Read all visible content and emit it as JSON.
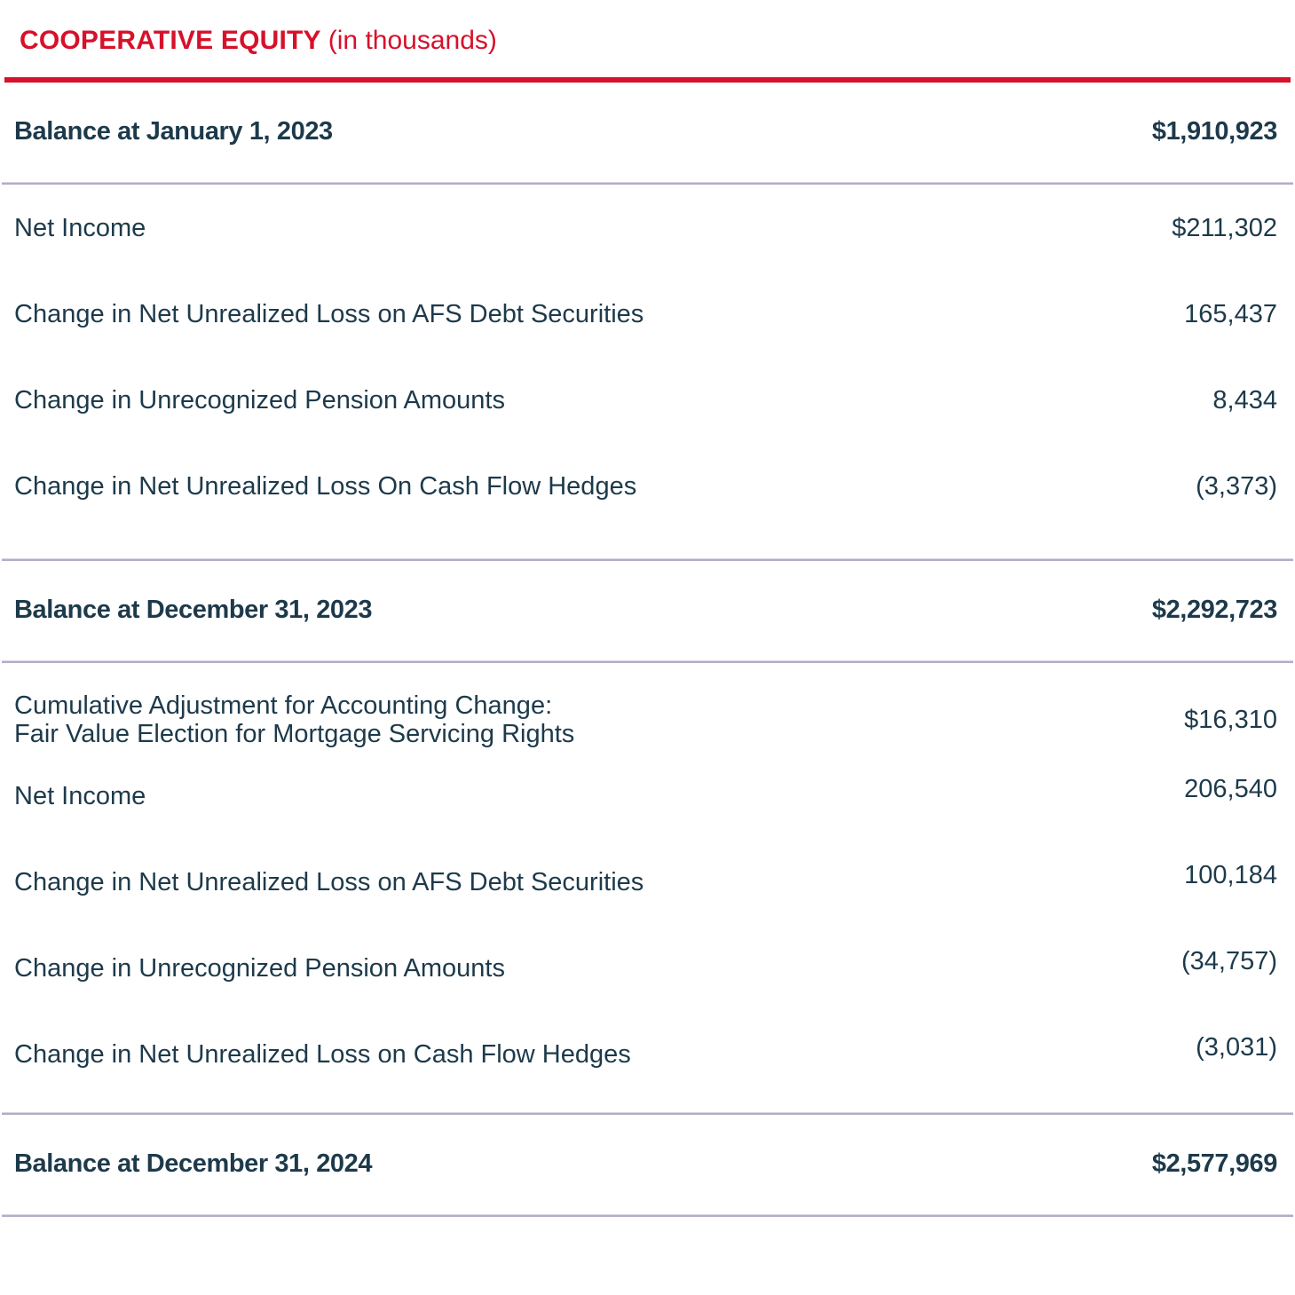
{
  "header": {
    "title": "COOPERATIVE EQUITY",
    "subtitle": "(in thousands)"
  },
  "colors": {
    "accent_red": "#D6112B",
    "text_navy": "#1D3A4B",
    "divider_purple": "#B5ABC6"
  },
  "table": {
    "rows": [
      {
        "label": "Balance at January 1, 2023",
        "value": "$1,910,923",
        "style": "bold"
      },
      {
        "label": "Net Income",
        "value": "$211,302"
      },
      {
        "label": "Change in Net Unrealized Loss on AFS Debt Securities",
        "value": "165,437"
      },
      {
        "label": "Change in Unrecognized Pension Amounts",
        "value": "8,434"
      },
      {
        "label": "Change in Net Unrealized Loss On Cash Flow Hedges",
        "value": "(3,373)"
      },
      {
        "label": "Balance at December 31, 2023",
        "value": "$2,292,723",
        "style": "bold"
      },
      {
        "label": "Cumulative Adjustment for Accounting Change:",
        "label_line2": "Fair Value Election for Mortgage Servicing Rights",
        "value": "$16,310"
      },
      {
        "label": "Net Income",
        "value": "206,540"
      },
      {
        "label": "Change in Net Unrealized Loss on AFS Debt Securities",
        "value": "100,184"
      },
      {
        "label": "Change in Unrecognized Pension Amounts",
        "value": "(34,757)"
      },
      {
        "label": "Change in Net Unrealized Loss on Cash Flow Hedges",
        "value": "(3,031)"
      },
      {
        "label": "Balance at December 31, 2024",
        "value": "$2,577,969",
        "style": "bold"
      }
    ]
  }
}
